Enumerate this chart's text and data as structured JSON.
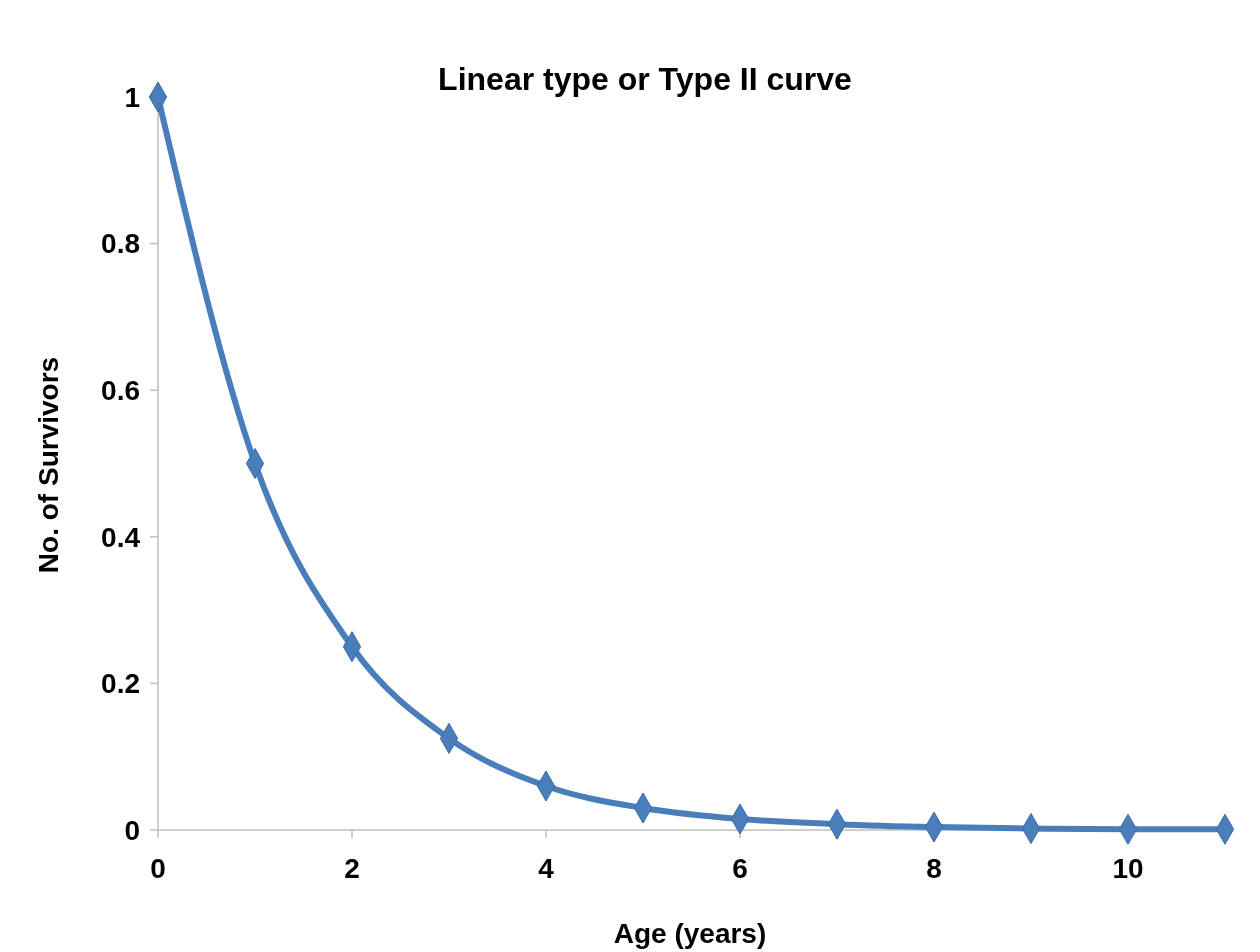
{
  "chart_data": {
    "type": "line",
    "title": "Linear type or Type II curve",
    "xlabel": "Age (years)",
    "ylabel": "No. of Survivors",
    "x": [
      0,
      1,
      2,
      3,
      4,
      5,
      6,
      7,
      8,
      9,
      10,
      11
    ],
    "series": [
      {
        "color": "#4a7ebb",
        "values": [
          1,
          0.5,
          0.25,
          0.125,
          0.06,
          0.03,
          0.015,
          0.008,
          0.004,
          0.002,
          0.001,
          0.001
        ]
      }
    ],
    "xlim": [
      0,
      11
    ],
    "xticks": [
      0,
      2,
      4,
      6,
      8,
      10
    ],
    "ylim": [
      0,
      1
    ],
    "yticks": [
      0,
      0.2,
      0.4,
      0.6,
      0.8,
      1
    ],
    "grid": false,
    "marker": "diamond",
    "line_style": "solid"
  }
}
